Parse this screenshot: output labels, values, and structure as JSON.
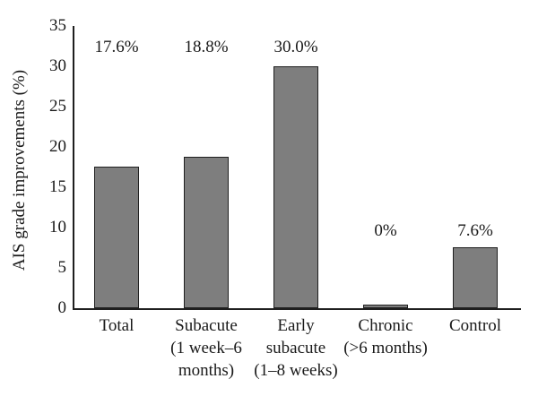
{
  "chart_data": {
    "type": "bar",
    "title": "",
    "xlabel": "",
    "ylabel": "AIS grade improvements (%)",
    "ylim": [
      0,
      35
    ],
    "yticks": [
      0,
      5,
      10,
      15,
      20,
      25,
      30,
      35
    ],
    "grid": false,
    "legend": null,
    "categories": [
      "Total",
      "Subacute (1 week–6 months)",
      "Early subacute (1–8 weeks)",
      "Chronic (>6 months)",
      "Control"
    ],
    "category_lines": [
      [
        "Total"
      ],
      [
        "Subacute",
        "(1 week–6",
        "months)"
      ],
      [
        "Early",
        "subacute",
        "(1–8 weeks)"
      ],
      [
        "Chronic",
        "(>6 months)"
      ],
      [
        "Control"
      ]
    ],
    "values": [
      17.6,
      18.8,
      30.0,
      0,
      7.6
    ],
    "value_labels": [
      "17.6%",
      "18.8%",
      "30.0%",
      "0%",
      "7.6%"
    ]
  },
  "colors": {
    "background": "#ffffff",
    "bar_fill": "#7e7e7e",
    "bar_border": "#1f1f1f",
    "axis": "#1f1f1f",
    "text": "#1a1a1a"
  }
}
